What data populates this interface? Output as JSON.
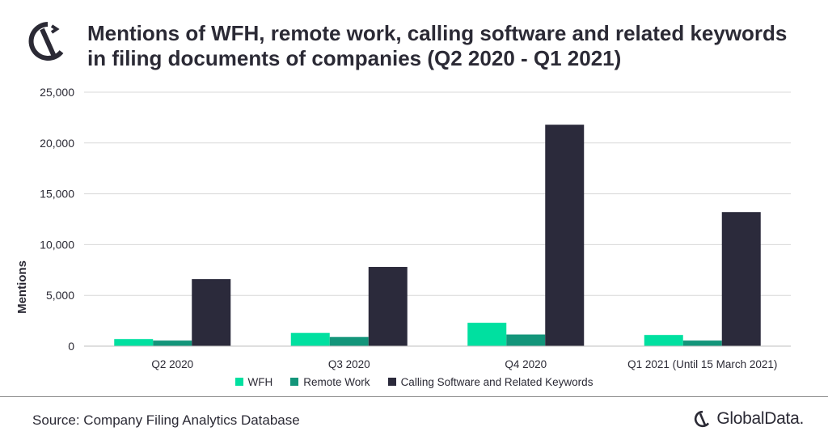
{
  "header": {
    "title": "Mentions of WFH, remote work, calling software and related keywords in filing documents of companies (Q2 2020 - Q1 2021)"
  },
  "chart_data": {
    "type": "bar",
    "title": "Mentions of WFH, remote work, calling software and related keywords in filing documents of companies (Q2 2020 - Q1 2021)",
    "ylabel": "Mentions",
    "xlabel": "",
    "ylim": [
      0,
      25000
    ],
    "yticks": [
      0,
      5000,
      10000,
      15000,
      20000,
      25000
    ],
    "ytick_labels": [
      "0",
      "5,000",
      "10,000",
      "15,000",
      "20,000",
      "25,000"
    ],
    "grid": true,
    "legend_position": "bottom",
    "categories": [
      "Q2 2020",
      "Q3 2020",
      "Q4 2020",
      "Q1 2021 (Until 15 March 2021)"
    ],
    "series": [
      {
        "name": "WFH",
        "color": "#00e0a0",
        "values": [
          700,
          1300,
          2300,
          1100
        ]
      },
      {
        "name": "Remote Work",
        "color": "#13957a",
        "values": [
          550,
          900,
          1150,
          550
        ]
      },
      {
        "name": "Calling Software and Related Keywords",
        "color": "#2b2a3b",
        "values": [
          6600,
          7800,
          21800,
          13200
        ]
      }
    ]
  },
  "footer": {
    "source": "Source: Company Filing Analytics Database",
    "brand": "GlobalData."
  },
  "icons": {
    "logo": "globaldata-logo-icon"
  }
}
